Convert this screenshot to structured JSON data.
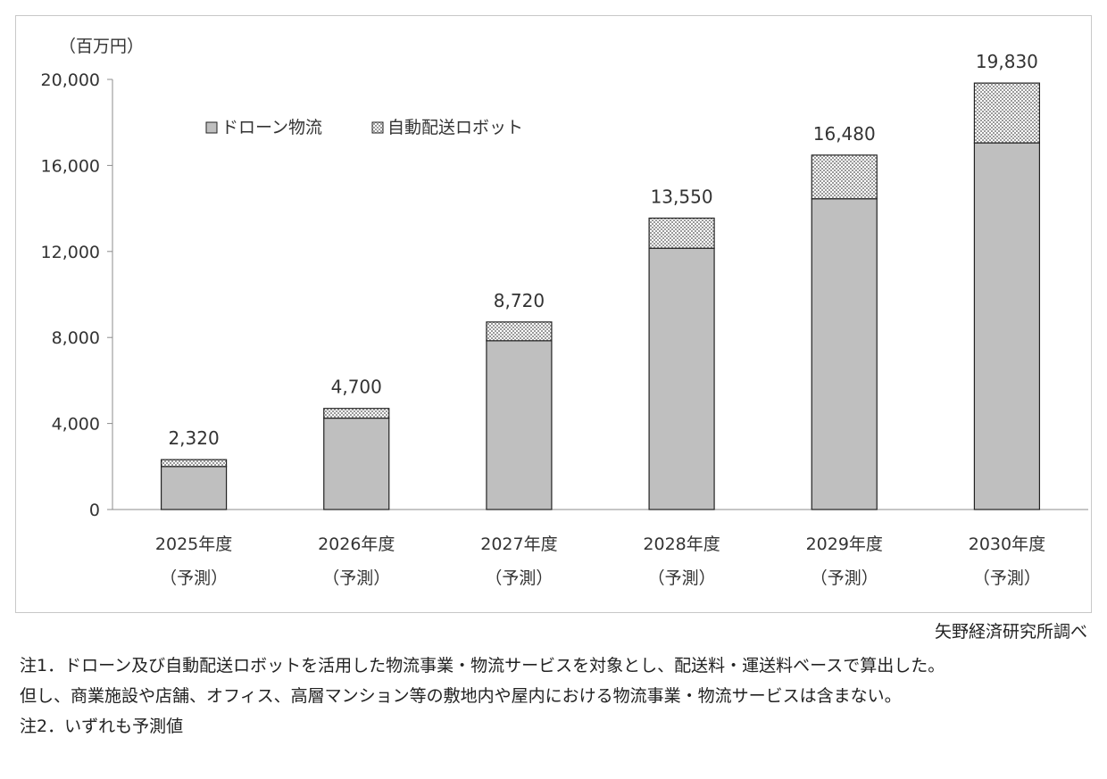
{
  "chart_data": {
    "type": "bar",
    "stacked": true,
    "unit_label": "（百万円）",
    "categories": [
      "2025年度",
      "2026年度",
      "2027年度",
      "2028年度",
      "2029年度",
      "2030年度"
    ],
    "category_sub": [
      "（予測）",
      "（予測）",
      "（予測）",
      "（予測）",
      "（予測）",
      "（予測）"
    ],
    "series": [
      {
        "name": "ドローン物流",
        "values": [
          2000,
          4250,
          7850,
          12150,
          14450,
          17050
        ],
        "color": "#bfbfbf",
        "pattern": "solid"
      },
      {
        "name": "自動配送ロボット",
        "values": [
          320,
          450,
          870,
          1400,
          2030,
          2780
        ],
        "color": "#ffffff",
        "pattern": "checker"
      }
    ],
    "totals": [
      "2,320",
      "4,700",
      "8,720",
      "13,550",
      "16,480",
      "19,830"
    ],
    "total_values": [
      2320,
      4700,
      8720,
      13550,
      16480,
      19830
    ],
    "yticks": [
      0,
      4000,
      8000,
      12000,
      16000,
      20000
    ],
    "ytick_labels": [
      "0",
      "4,000",
      "8,000",
      "12,000",
      "16,000",
      "20,000"
    ],
    "ylim": [
      0,
      20000
    ],
    "grid": false,
    "legend_position": "top-left"
  },
  "source": "矢野経済研究所調べ",
  "notes": [
    "注1．ドローン及び自動配送ロボットを活用した物流事業・物流サービスを対象とし、配送料・運送料ベースで算出した。",
    "但し、商業施設や店舗、オフィス、高層マンション等の敷地内や屋内における物流事業・物流サービスは含まない。",
    "注2．いずれも予測値"
  ]
}
